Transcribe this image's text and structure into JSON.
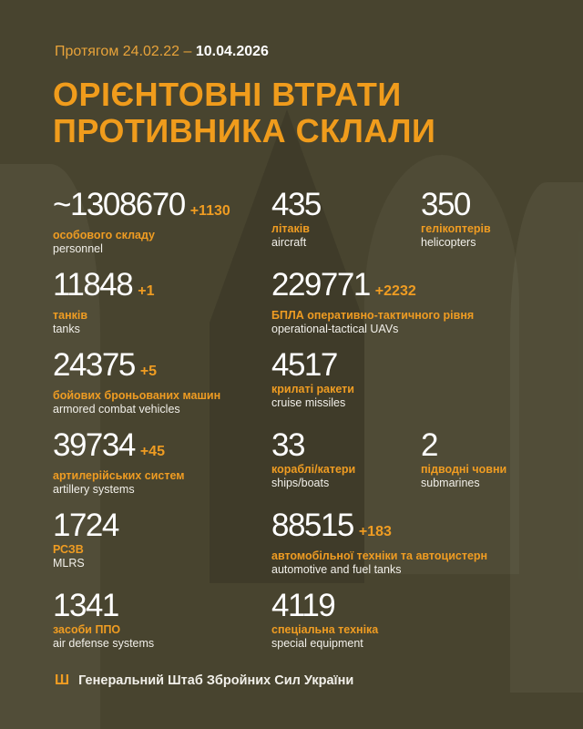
{
  "header": {
    "period_prefix": "Протягом 24.02.22 –",
    "period_end": "10.04.2026",
    "title_line1": "ОРІЄНТОВНІ ВТРАТИ",
    "title_line2": "ПРОТИВНИКА СКЛАЛИ"
  },
  "stats": [
    {
      "value": "~1308670",
      "delta": "+1130",
      "ua": "особового складу",
      "en": "personnel"
    },
    {
      "value": "435",
      "delta": "",
      "ua": "літаків",
      "en": "aircraft"
    },
    {
      "value": "350",
      "delta": "",
      "ua": "гелікоптерів",
      "en": "helicopters"
    },
    {
      "value": "11848",
      "delta": "+1",
      "ua": "танків",
      "en": "tanks"
    },
    {
      "value": "229771",
      "delta": "+2232",
      "ua": "БПЛА оперативно-тактичного рівня",
      "en": "operational-tactical UAVs"
    },
    {
      "value": "24375",
      "delta": "+5",
      "ua": "бойових броньованих машин",
      "en": "armored combat vehicles"
    },
    {
      "value": "4517",
      "delta": "",
      "ua": "крилаті ракети",
      "en": "cruise missiles"
    },
    {
      "value": "39734",
      "delta": "+45",
      "ua": "артилерійських систем",
      "en": "artillery systems"
    },
    {
      "value": "33",
      "delta": "",
      "ua": "кораблі/катери",
      "en": "ships/boats"
    },
    {
      "value": "2",
      "delta": "",
      "ua": "підводні човни",
      "en": "submarines"
    },
    {
      "value": "1724",
      "delta": "",
      "ua": "РСЗВ",
      "en": "MLRS"
    },
    {
      "value": "88515",
      "delta": "+183",
      "ua": "автомобільної техніки та автоцистерн",
      "en": "automotive and fuel tanks"
    },
    {
      "value": "1341",
      "delta": "",
      "ua": "засоби ППО",
      "en": "air defense systems"
    },
    {
      "value": "4119",
      "delta": "",
      "ua": "спеціальна техніка",
      "en": "special equipment"
    }
  ],
  "footer": {
    "icon": "trident-icon",
    "text": "Генеральний Штаб Збройних Сил України"
  },
  "colors": {
    "background": "#48442f",
    "accent": "#ef9c22",
    "text": "#ffffff"
  }
}
